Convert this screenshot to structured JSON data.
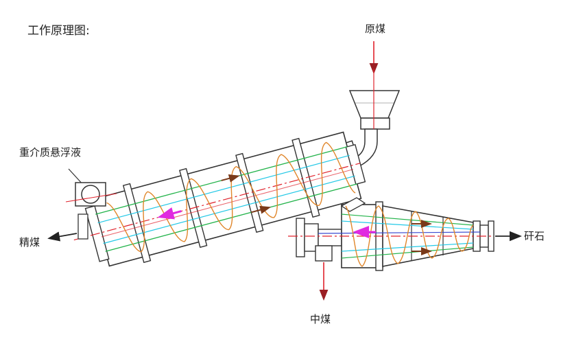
{
  "title": "工作原理图:",
  "labels": {
    "feed": "原煤",
    "medium": "重介质悬浮液",
    "clean_coal": "精煤",
    "middlings": "中煤",
    "refuse": "矸石"
  },
  "colors": {
    "outline": "#333333",
    "red": "#e0202a",
    "green": "#22b34a",
    "cyan": "#22c8e6",
    "orange": "#e0862a",
    "magenta": "#e02ae0",
    "blue": "#3a4ad0",
    "arrow": "#8a2020"
  }
}
